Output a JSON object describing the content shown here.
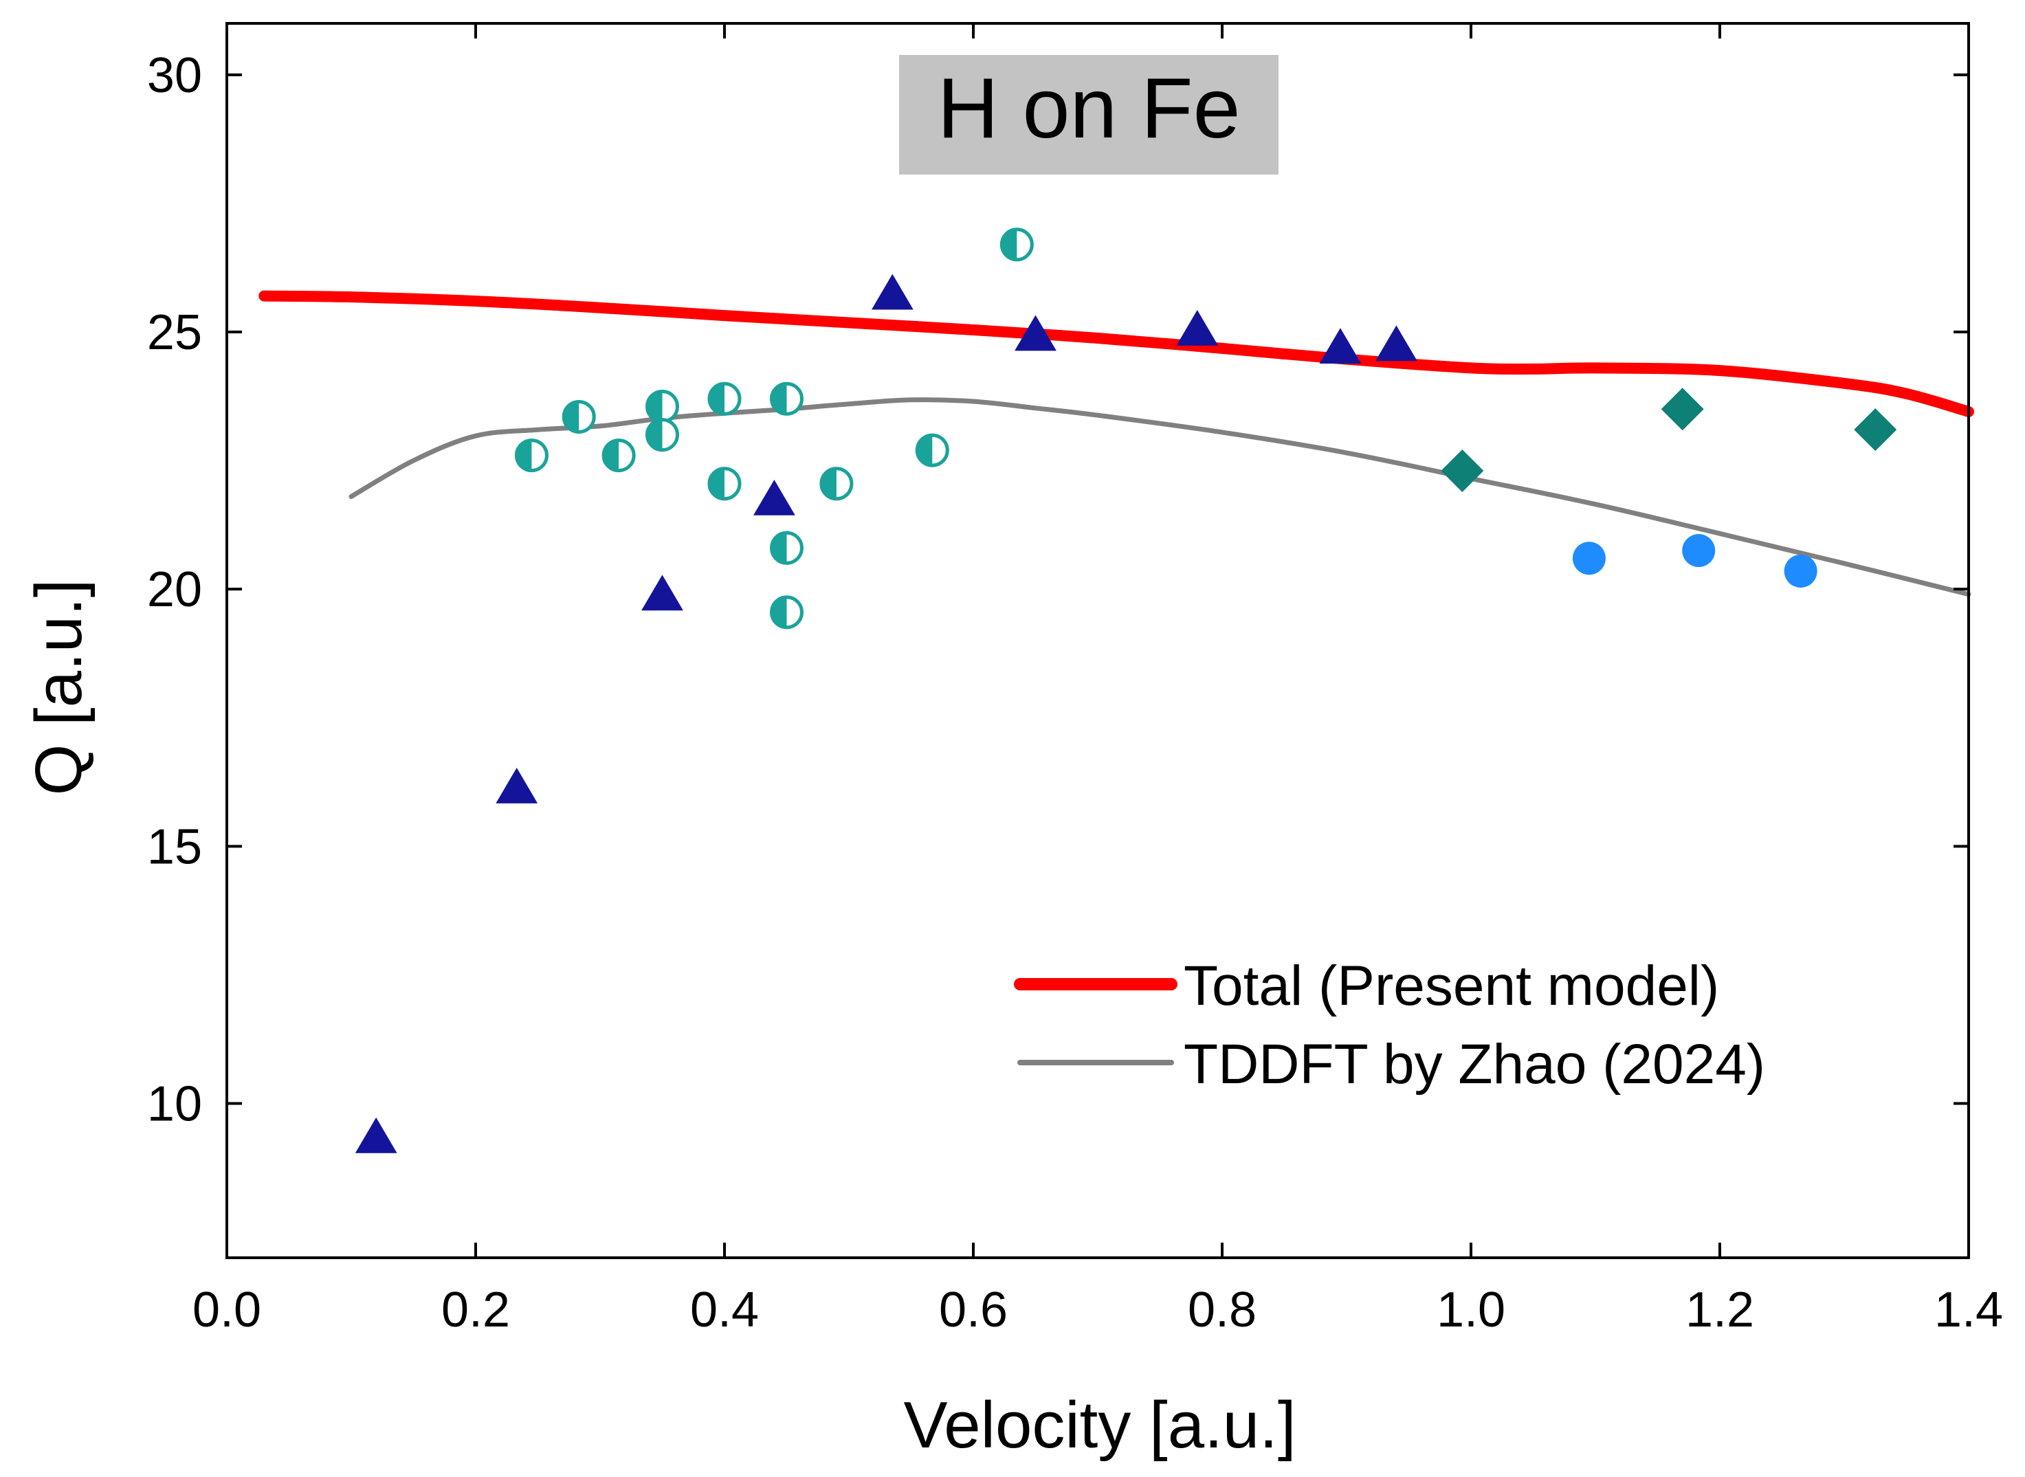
{
  "chart_data": {
    "type": "scatter",
    "title": "H on Fe",
    "xlabel": "Velocity [a.u.]",
    "ylabel": "Q [a.u.]",
    "xlim": [
      0.0,
      1.4
    ],
    "ylim": [
      7.0,
      31.0
    ],
    "x_ticks": [
      0.0,
      0.2,
      0.4,
      0.6,
      0.8,
      1.0,
      1.2,
      1.4
    ],
    "x_tick_labels": [
      "0.0",
      "0.2",
      "0.4",
      "0.6",
      "0.8",
      "1.0",
      "1.2",
      "1.4"
    ],
    "y_ticks": [
      10,
      15,
      20,
      25,
      30
    ],
    "y_tick_labels": [
      "10",
      "15",
      "20",
      "25",
      "30"
    ],
    "grid": false,
    "legend_position": "bottom-right",
    "lines": [
      {
        "name": "Total (Present model)",
        "color": "#ff0000",
        "style": "thick",
        "x": [
          0.03,
          0.1,
          0.2,
          0.3,
          0.4,
          0.5,
          0.6,
          0.7,
          0.8,
          0.9,
          1.0,
          1.05,
          1.1,
          1.2,
          1.3,
          1.35,
          1.4
        ],
        "y": [
          25.7,
          25.68,
          25.6,
          25.47,
          25.32,
          25.18,
          25.04,
          24.88,
          24.68,
          24.47,
          24.3,
          24.28,
          24.3,
          24.25,
          24.0,
          23.8,
          23.45
        ]
      },
      {
        "name": "TDDFT by Zhao (2024)",
        "color": "#808080",
        "style": "thin",
        "x": [
          0.1,
          0.15,
          0.2,
          0.25,
          0.3,
          0.35,
          0.4,
          0.45,
          0.5,
          0.55,
          0.6,
          0.65,
          0.7,
          0.8,
          0.9,
          1.0,
          1.1,
          1.2,
          1.3,
          1.4
        ],
        "y": [
          21.8,
          22.5,
          22.98,
          23.1,
          23.17,
          23.32,
          23.42,
          23.5,
          23.6,
          23.68,
          23.65,
          23.52,
          23.38,
          23.05,
          22.65,
          22.15,
          21.65,
          21.08,
          20.5,
          19.9
        ]
      }
    ],
    "scatter_series": [
      {
        "name": "navy-triangles",
        "marker": "triangle",
        "color": "#14149a",
        "x": [
          0.12,
          0.233,
          0.35,
          0.44,
          0.535,
          0.65,
          0.78,
          0.895,
          0.94
        ],
        "y": [
          9.3,
          16.1,
          19.85,
          21.7,
          25.7,
          24.9,
          25.0,
          24.65,
          24.7
        ]
      },
      {
        "name": "teal-half-circles",
        "marker": "half-circle",
        "color": "#1aa39a",
        "x": [
          0.245,
          0.283,
          0.315,
          0.35,
          0.35,
          0.4,
          0.4,
          0.45,
          0.45,
          0.45,
          0.49,
          0.567,
          0.635
        ],
        "y": [
          22.6,
          23.35,
          22.6,
          23.55,
          23.0,
          23.7,
          22.05,
          23.7,
          20.8,
          19.55,
          22.05,
          22.7,
          26.7
        ]
      },
      {
        "name": "dark-teal-diamonds",
        "marker": "diamond",
        "color": "#0e8076",
        "x": [
          0.993,
          1.17,
          1.325
        ],
        "y": [
          22.3,
          23.5,
          23.1
        ]
      },
      {
        "name": "blue-circles",
        "marker": "circle",
        "color": "#1e8cff",
        "x": [
          1.095,
          1.183,
          1.265
        ],
        "y": [
          20.6,
          20.75,
          20.35
        ]
      }
    ]
  }
}
